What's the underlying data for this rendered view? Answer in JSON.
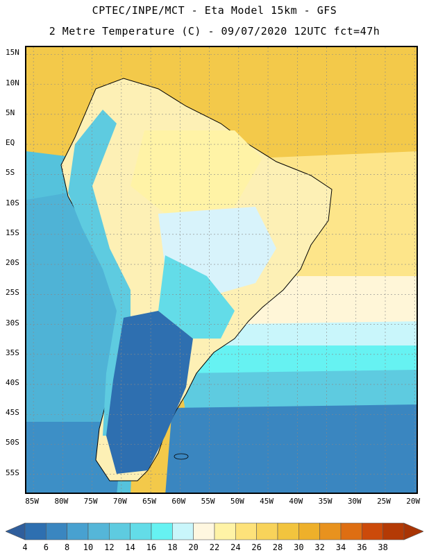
{
  "header": {
    "line1": "CPTEC/INPE/MCT -  Eta Model 15km - GFS",
    "line2": "2 Metre Temperature (C) - 09/07/2020 12UTC fct=47h"
  },
  "map": {
    "lat_labels": [
      "15N",
      "10N",
      "5N",
      "EQ",
      "5S",
      "10S",
      "15S",
      "20S",
      "25S",
      "30S",
      "35S",
      "40S",
      "45S",
      "50S",
      "55S"
    ],
    "lon_labels": [
      "85W",
      "80W",
      "75W",
      "70W",
      "65W",
      "60W",
      "55W",
      "50W",
      "45W",
      "40W",
      "35W",
      "30W",
      "25W",
      "20W"
    ],
    "extent": {
      "lon_min": -86.2,
      "lon_max": -19.2,
      "lat_min": -58.5,
      "lat_max": 16.2
    }
  },
  "legend": {
    "labels": [
      "4",
      "6",
      "8",
      "10",
      "12",
      "14",
      "16",
      "18",
      "20",
      "22",
      "24",
      "26",
      "28",
      "30",
      "32",
      "34",
      "36",
      "38"
    ],
    "colors": [
      "#2e6fb0",
      "#3a86c0",
      "#48a1d0",
      "#55b6d8",
      "#5ecbe0",
      "#63dce8",
      "#66f2f2",
      "#c9f6fb",
      "#fff7e0",
      "#fff3a6",
      "#fde27a",
      "#f8d35a",
      "#f2c43e",
      "#eeb02a",
      "#e8921e",
      "#de6e12",
      "#cc4a0a",
      "#b43a05"
    ],
    "min_arrow_color": "#2f5e9c",
    "max_arrow_color": "#a83404"
  }
}
